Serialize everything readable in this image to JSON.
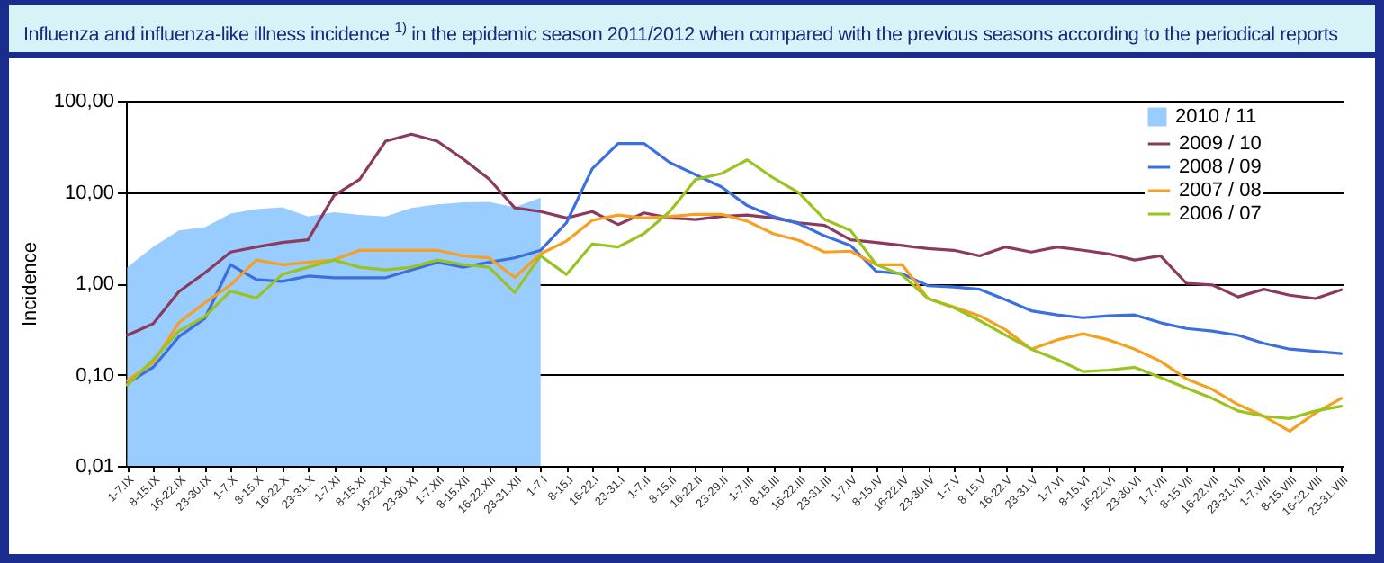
{
  "chart_data": {
    "type": "line",
    "title": "Influenza and influenza-like illness incidence $^{1)}$ in the epidemic season 2011/2012 when compared with the previous seasons according to the periodical reports",
    "ylabel": "Incidence",
    "log": "y",
    "grid": "y",
    "legend": "top right",
    "ylim": [
      0.01,
      100
    ],
    "yticks": [
      {
        "value": 0.01,
        "label": "0,01"
      },
      {
        "value": 0.1,
        "label": "0,10"
      },
      {
        "value": 1,
        "label": "1,00"
      },
      {
        "value": 10,
        "label": "10,00"
      },
      {
        "value": 100,
        "label": "100,00"
      }
    ],
    "categories": [
      "1-7.IX",
      "8-15.IX",
      "16-22.IX",
      "23-30.IX",
      "1-7.X",
      "8-15.X",
      "16-22.X",
      "23-31.X",
      "1-7.XI",
      "8-15.XI",
      "16-22.XI",
      "23-30.XI",
      "1-7.XII",
      "8-15.XII",
      "16-22.XII",
      "23-31.XII",
      "1-7.I",
      "8-15.I",
      "16-22.I",
      "23-31.I",
      "1-7.II",
      "8-15.II",
      "16-22.II",
      "23-29.II",
      "1-7.III",
      "8-15.III",
      "16-22.III",
      "23-31.III",
      "1-7.IV",
      "8-15.IV",
      "16-22.IV",
      "23-30.IV",
      "1-7.V",
      "8-15.V",
      "16-22.V",
      "23-31.V",
      "1-7.VI",
      "8-15.VI",
      "16-22.VI",
      "23-30.VI",
      "1-7.VII",
      "8-15.VII",
      "16-22.VII",
      "23-31.VII",
      "1-7.VIII",
      "8-15.VIII",
      "16-22.VIII",
      "23-31.VIII"
    ],
    "series": [
      {
        "name": "2010 / 11",
        "type": "area",
        "color": "#99ccff",
        "values": [
          1.5,
          2.5,
          3.8,
          4.1,
          5.8,
          6.5,
          6.8,
          5.4,
          6.0,
          5.6,
          5.4,
          6.7,
          7.3,
          7.7,
          7.8,
          6.8,
          8.7,
          null,
          null,
          null,
          null,
          null,
          null,
          null,
          null,
          null,
          null,
          null,
          null,
          null,
          null,
          null,
          null,
          null,
          null,
          null,
          null,
          null,
          null,
          null,
          null,
          null,
          null,
          null,
          null,
          null,
          null,
          null
        ]
      },
      {
        "name": "2009 / 10",
        "color": "#8b3a5e",
        "values": [
          0.27,
          0.36,
          0.81,
          1.3,
          2.2,
          2.5,
          2.8,
          3.0,
          9.1,
          13.8,
          36,
          43,
          36,
          23,
          13.9,
          6.7,
          6.1,
          5.2,
          6.1,
          4.4,
          5.9,
          5.2,
          5.0,
          5.4,
          5.6,
          5.2,
          4.6,
          4.3,
          3.0,
          2.8,
          2.6,
          2.4,
          2.3,
          2.0,
          2.5,
          2.2,
          2.5,
          2.3,
          2.1,
          1.8,
          2.0,
          1.0,
          0.96,
          0.71,
          0.86,
          0.74,
          0.68,
          0.85
        ]
      },
      {
        "name": "2008 / 09",
        "color": "#3b6fe0",
        "values": [
          0.08,
          0.12,
          0.26,
          0.41,
          1.6,
          1.1,
          1.05,
          1.2,
          1.15,
          1.15,
          1.15,
          1.4,
          1.7,
          1.5,
          1.7,
          1.9,
          2.3,
          4.6,
          18,
          34,
          34,
          21,
          15.5,
          11.4,
          7.1,
          5.4,
          4.5,
          3.3,
          2.6,
          1.35,
          1.27,
          0.94,
          0.91,
          0.86,
          0.66,
          0.5,
          0.45,
          0.42,
          0.44,
          0.45,
          0.37,
          0.32,
          0.3,
          0.27,
          0.22,
          0.19,
          0.18,
          0.17
        ]
      },
      {
        "name": "2007 / 08",
        "color": "#f5a020",
        "values": [
          0.086,
          0.135,
          0.37,
          0.61,
          0.96,
          1.8,
          1.6,
          1.7,
          1.8,
          2.3,
          2.3,
          2.3,
          2.3,
          2.0,
          1.9,
          1.16,
          2.1,
          2.9,
          4.9,
          5.6,
          5.2,
          5.4,
          5.7,
          5.7,
          4.8,
          3.5,
          2.95,
          2.2,
          2.25,
          1.6,
          1.6,
          0.68,
          0.55,
          0.44,
          0.31,
          0.19,
          0.24,
          0.28,
          0.24,
          0.19,
          0.14,
          0.09,
          0.069,
          0.047,
          0.035,
          0.024,
          0.038,
          0.055
        ]
      },
      {
        "name": "2006 / 07",
        "color": "#99c31f",
        "values": [
          0.077,
          0.145,
          0.3,
          0.43,
          0.82,
          0.69,
          1.25,
          1.5,
          1.8,
          1.5,
          1.4,
          1.5,
          1.8,
          1.6,
          1.5,
          0.79,
          2.0,
          1.25,
          2.7,
          2.5,
          3.5,
          6.1,
          13.7,
          15.9,
          22.5,
          14.3,
          9.8,
          5.0,
          3.8,
          1.6,
          1.23,
          0.68,
          0.54,
          0.39,
          0.27,
          0.19,
          0.146,
          0.108,
          0.112,
          0.12,
          0.093,
          0.071,
          0.055,
          0.04,
          0.035,
          0.033,
          0.04,
          0.045
        ]
      }
    ]
  }
}
